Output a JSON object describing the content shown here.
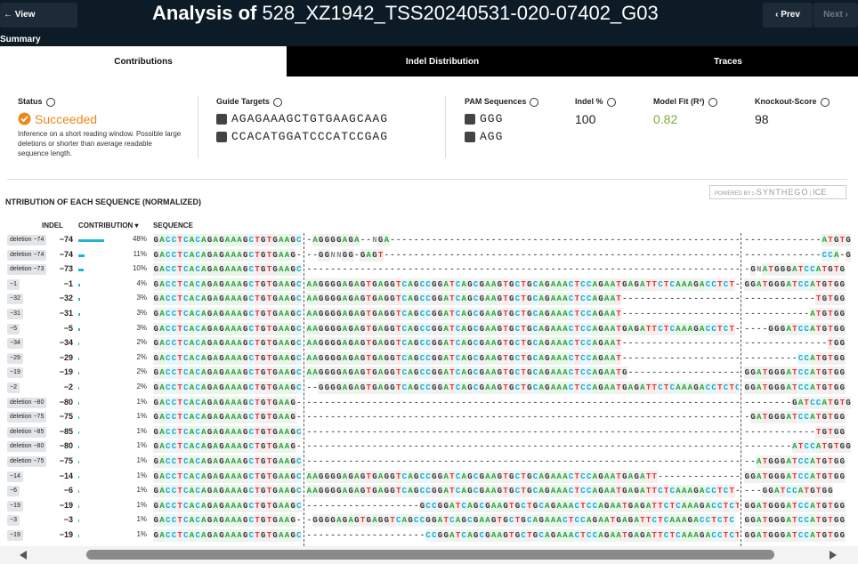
{
  "header": {
    "back": "View Summary",
    "title_prefix": "Analysis of",
    "title_name": "528_XZ1942_TSS20240531-020-07402_G03",
    "prev": "Prev",
    "next": "Next"
  },
  "tabs": [
    "Contributions",
    "Indel Distribution",
    "Traces"
  ],
  "summary": {
    "status_label": "Status",
    "status": "Succeeded",
    "status_note": "Inference on a short reading window. Possible large deletions or shorter than average readable sequence length.",
    "guides_label": "Guide Targets",
    "guides": [
      "AGAGAAAGCTGTGAAGCAAG",
      "CCACATGGATCCCATCCGAG"
    ],
    "pam_label": "PAM Sequences",
    "pams": [
      "GGG",
      "AGG"
    ],
    "indel_label": "Indel %",
    "indel": "100",
    "fit_label": "Model Fit (R²)",
    "fit": "0.82",
    "ko_label": "Knockout-Score",
    "ko": "98"
  },
  "section": {
    "title": "NTRIBUTION OF EACH SEQUENCE (NORMALIZED)",
    "badge_powered": "POWERED BY",
    "badge_brand": "SYNTHEGO",
    "badge_product": "ICE"
  },
  "table": {
    "columns": [
      "INDEL",
      "CONTRIBUTION",
      "SEQUENCE"
    ],
    "rows": [
      {
        "chip": "deletion −74",
        "indel": "−74",
        "contribution": 48,
        "contribution_label": "48%",
        "seq1": "GACCTCACAGAGAAAGCTGTGAAGC",
        "seq2": "-AGGGGAGA--NGA-----------------------------------------------------------",
        "seq3": "-------------ATGTG"
      },
      {
        "chip": "deletion −74",
        "indel": "−74",
        "contribution": 11,
        "contribution_label": "11%",
        "seq1": "GACCTCACAGAGAAAGCTGTGAAG-",
        "seq2": "--GGNNGG-GAGT------------------------------------------------------------",
        "seq3": "-------------CCA-GT"
      },
      {
        "chip": "deletion −73",
        "indel": "−73",
        "contribution": 10,
        "contribution_label": "10%",
        "seq1": "GACCTCACAGAGAAAGCTGTGAAGC",
        "seq2": "-------------------------------------------------------------------------",
        "seq3": "-GNATGGGATCCATGTG"
      },
      {
        "chip": "−1",
        "indel": "−1",
        "contribution": 4,
        "contribution_label": "4%",
        "seq1": "GACCTCACAGAGAAAGCTGTGAAGC",
        "seq2": "AAGGGGAGAGTGAGGTCAGCCGGATCAGCGAAGTGCTGCAGAAACTCCAGAATGAGATTCTCAAAGACCTCT-",
        "seq3": "GGATGGGATCCATGTGG"
      },
      {
        "chip": "−32",
        "indel": "−32",
        "contribution": 3,
        "contribution_label": "3%",
        "seq1": "GACCTCACAGAGAAAGCTGTGAAGC",
        "seq2": "AAGGGGAGAGTGAGGTCAGCCGGATCAGCGAAGTGCTGCAGAAACTCCAGAAT--------------------",
        "seq3": "------------TGTGG"
      },
      {
        "chip": "−31",
        "indel": "−31",
        "contribution": 3,
        "contribution_label": "3%",
        "seq1": "GACCTCACAGAGAAAGCTGTGAAGC",
        "seq2": "AAGGGGAGAGTGAGGTCAGCCGGATCAGCGAAGTGCTGCAGAAACTCCAGAAT--------------------",
        "seq3": "-----------ATGTGG"
      },
      {
        "chip": "−5",
        "indel": "−5",
        "contribution": 3,
        "contribution_label": "3%",
        "seq1": "GACCTCACAGAGAAAGCTGTGAAGC",
        "seq2": "AAGGGGAGAGTGAGGTCAGCCGGATCAGCGAAGTGCTGCAGAAACTCCAGAATGAGATTCTCAAAGACCTCT-",
        "seq3": "----GGGATCCATGTGG"
      },
      {
        "chip": "−34",
        "indel": "−34",
        "contribution": 2,
        "contribution_label": "2%",
        "seq1": "GACCTCACAGAGAAAGCTGTGAAGC",
        "seq2": "AAGGGGAGAGTGAGGTCAGCCGGATCAGCGAAGTGCTGCAGAAACTCCAGAAT--------------------",
        "seq3": "--------------TGG"
      },
      {
        "chip": "−29",
        "indel": "−29",
        "contribution": 2,
        "contribution_label": "2%",
        "seq1": "GACCTCACAGAGAAAGCTGTGAAGC",
        "seq2": "AAGGGGAGAGTGAGGTCAGCCGGATCAGCGAAGTGCTGCAGAAACTCCAGAAT--------------------",
        "seq3": "---------CCATGTGG"
      },
      {
        "chip": "−19",
        "indel": "−19",
        "contribution": 2,
        "contribution_label": "2%",
        "seq1": "GACCTCACAGAGAAAGCTGTGAAGC",
        "seq2": "AAGGGGAGAGTGAGGTCAGCCGGATCAGCGAAGTGCTGCAGAAACTCCAGAATG-------------------",
        "seq3": "GGATGGGATCCATGTGG"
      },
      {
        "chip": "−2",
        "indel": "−2",
        "contribution": 2,
        "contribution_label": "2%",
        "seq1": "GACCTCACAGAGAAAGCTGTGAAGC",
        "seq2": "--GGGGAGAGTGAGGTCAGCCGGATCAGCGAAGTGCTGCAGAAACTCCAGAATGAGATTCTCAAAGACCTCTC",
        "seq3": "GGATGGGATCCATGTGG"
      },
      {
        "chip": "deletion −80",
        "indel": "−80",
        "contribution": 1,
        "contribution_label": "1%",
        "seq1": "GACCTCACAGAGAAAGCTGTGAAG-",
        "seq2": "-------------------------------------------------------------------------",
        "seq3": "--------GATCCATGTGG"
      },
      {
        "chip": "deletion −75",
        "indel": "−75",
        "contribution": 1,
        "contribution_label": "1%",
        "seq1": "GACCTCACAGAGAAAGCTGTGAAG-",
        "seq2": "-------------------------------------------------------------------------",
        "seq3": "-GATGGGATCCATGTGG"
      },
      {
        "chip": "deletion −85",
        "indel": "−85",
        "contribution": 1,
        "contribution_label": "1%",
        "seq1": "GACCTCACAGAGAAAGCTGTGAAGC",
        "seq2": "-------------------------------------------------------------------------",
        "seq3": "------------TGTGG"
      },
      {
        "chip": "deletion −80",
        "indel": "−80",
        "contribution": 1,
        "contribution_label": "1%",
        "seq1": "GACCTCACAGAGAAAGCTGTGAAG-",
        "seq2": "-------------------------------------------------------------------------",
        "seq3": "--------ATCCATGTGG"
      },
      {
        "chip": "deletion −75",
        "indel": "−75",
        "contribution": 1,
        "contribution_label": "1%",
        "seq1": "GACCTCACAGAGAAAGCTGTGAAGC",
        "seq2": "-------------------------------------------------------------------------",
        "seq3": "--ATGGGATCCATGTGG"
      },
      {
        "chip": "−14",
        "indel": "−14",
        "contribution": 1,
        "contribution_label": "1%",
        "seq1": "GACCTCACAGAGAAAGCTGTGAAGC",
        "seq2": "AAGGGGAGAGTGAGGTCAGCCGGATCAGCGAAGTGCTGCAGAAACTCCAGAATGAGATT--------------",
        "seq3": "GGATGGGATCCATGTGG"
      },
      {
        "chip": "−6",
        "indel": "−6",
        "contribution": 1,
        "contribution_label": "1%",
        "seq1": "GACCTCACAGAGAAAGCTGTGAAGC",
        "seq2": "AAGGGGAGAGTGAGGTCAGCCGGATCAGCGAAGTGCTGCAGAAACTCCAGAATGAGATTCTCAAAGACCTCT-",
        "seq3": "---GGATCCATGTGG"
      },
      {
        "chip": "−19",
        "indel": "−19",
        "contribution": 1,
        "contribution_label": "1%",
        "seq1": "GACCTCACAGAGAAAGCTGTGAAGC",
        "seq2": "-------------------GCCGGATCAGCGAAGTGCTGCAGAAACTCCAGAATGAGATTCTCAAAGACCTCT",
        "seq3": "GGATGGGATCCATGTGG"
      },
      {
        "chip": "−3",
        "indel": "−3",
        "contribution": 1,
        "contribution_label": "1%",
        "seq1": "GACCTCACAGAGAAAGCTGTGAAG-",
        "seq2": "-GGGGAGAGTGAGGTCAGCCGGATCAGCGAAGTGCTGCAGAAACTCCAGAATGAGATTCTCAAAGACCTCTC",
        "seq3": "GGATGGGATCCATGTGG"
      },
      {
        "chip": "−19",
        "indel": "−19",
        "contribution": 1,
        "contribution_label": "1%",
        "seq1": "GACCTCACAGAGAAAGCTGTGAAGC",
        "seq2": "--------------------CCGGATCAGCGAAGTGCTGCAGAAACTCCAGAATGAGATTCTCAAAGACCTCTC",
        "seq3": "GGATGGGATCCATGTGG"
      }
    ]
  }
}
